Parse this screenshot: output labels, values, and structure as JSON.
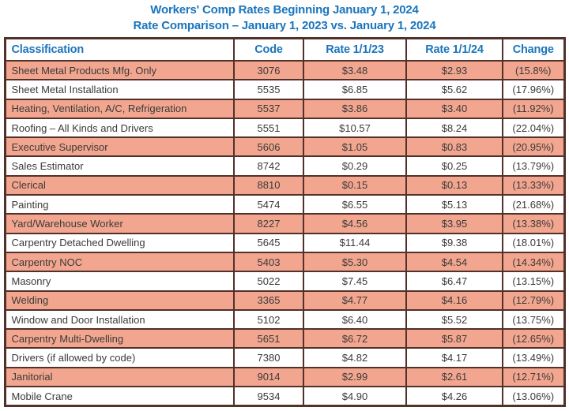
{
  "title": {
    "line1": "Workers' Comp Rates Beginning January 1, 2024",
    "line2": "Rate Comparison – January 1, 2023 vs. January 1, 2024"
  },
  "chart_data": {
    "type": "table",
    "title": "Workers' Comp Rates Beginning January 1, 2024",
    "subtitle": "Rate Comparison – January 1, 2023 vs. January 1, 2024",
    "columns": [
      "Classification",
      "Code",
      "Rate 1/1/23",
      "Rate 1/1/24",
      "Change"
    ],
    "rows": [
      [
        "Sheet Metal Products Mfg. Only",
        "3076",
        "$3.48",
        "$2.93",
        "(15.8%)"
      ],
      [
        "Sheet Metal Installation",
        "5535",
        "$6.85",
        "$5.62",
        "(17.96%)"
      ],
      [
        "Heating, Ventilation, A/C, Refrigeration",
        "5537",
        "$3.86",
        "$3.40",
        "(11.92%)"
      ],
      [
        "Roofing – All Kinds and Drivers",
        "5551",
        "$10.57",
        "$8.24",
        "(22.04%)"
      ],
      [
        "Executive Supervisor",
        "5606",
        "$1.05",
        "$0.83",
        "(20.95%)"
      ],
      [
        "Sales Estimator",
        "8742",
        "$0.29",
        "$0.25",
        "(13.79%)"
      ],
      [
        "Clerical",
        "8810",
        "$0.15",
        "$0.13",
        "(13.33%)"
      ],
      [
        "Painting",
        "5474",
        "$6.55",
        "$5.13",
        "(21.68%)"
      ],
      [
        "Yard/Warehouse Worker",
        "8227",
        "$4.56",
        "$3.95",
        "(13.38%)"
      ],
      [
        "Carpentry Detached Dwelling",
        "5645",
        "$11.44",
        "$9.38",
        "(18.01%)"
      ],
      [
        "Carpentry NOC",
        "5403",
        "$5.30",
        "$4.54",
        "(14.34%)"
      ],
      [
        "Masonry",
        "5022",
        "$7.45",
        "$6.47",
        "(13.15%)"
      ],
      [
        "Welding",
        "3365",
        "$4.77",
        "$4.16",
        "(12.79%)"
      ],
      [
        "Window and Door Installation",
        "5102",
        "$6.40",
        "$5.52",
        "(13.75%)"
      ],
      [
        "Carpentry Multi-Dwelling",
        "5651",
        "$6.72",
        "$5.87",
        "(12.65%)"
      ],
      [
        "Drivers (if allowed by code)",
        "7380",
        "$4.82",
        "$4.17",
        "(13.49%)"
      ],
      [
        "Janitorial",
        "9014",
        "$2.99",
        "$2.61",
        "(12.71%)"
      ],
      [
        "Mobile Crane",
        "9534",
        "$4.90",
        "$4.26",
        "(13.06%)"
      ]
    ],
    "layout_hints": {
      "row_striping": "odd data rows (1st, 3rd, ...) highlighted salmon, others white",
      "column_alignment": [
        "left",
        "center",
        "center",
        "center",
        "center"
      ]
    }
  },
  "colors": {
    "title_blue": "#1b75bc",
    "header_blue": "#1b75bc",
    "row_highlight_salmon": "#f3a68f",
    "border_brown": "#52312a",
    "cell_text": "#3a3a3a",
    "background": "#ffffff"
  }
}
